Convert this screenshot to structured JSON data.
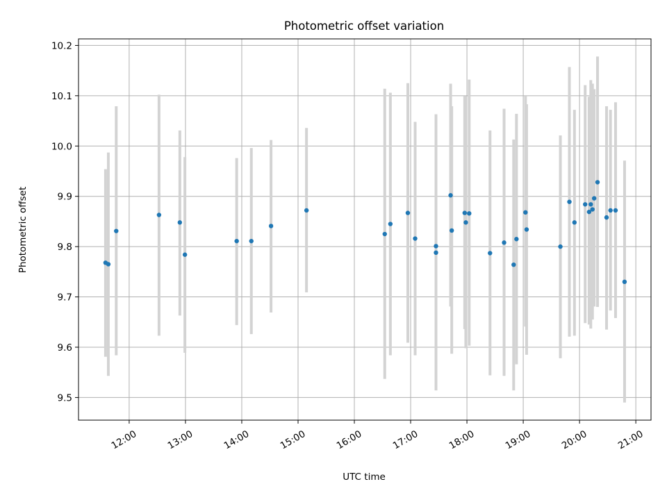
{
  "chart_data": {
    "type": "scatter",
    "title": "Photometric offset variation",
    "xlabel": "UTC time",
    "ylabel": "Photometric offset",
    "grid": true,
    "xlim": [
      11.1,
      21.27
    ],
    "ylim": [
      9.455,
      10.213
    ],
    "x_ticks": [
      {
        "value": 12,
        "label": "12:00"
      },
      {
        "value": 13,
        "label": "13:00"
      },
      {
        "value": 14,
        "label": "14:00"
      },
      {
        "value": 15,
        "label": "15:00"
      },
      {
        "value": 16,
        "label": "16:00"
      },
      {
        "value": 17,
        "label": "17:00"
      },
      {
        "value": 18,
        "label": "18:00"
      },
      {
        "value": 19,
        "label": "19:00"
      },
      {
        "value": 20,
        "label": "20:00"
      },
      {
        "value": 21,
        "label": "21:00"
      }
    ],
    "y_ticks": [
      {
        "value": 9.5,
        "label": "9.5"
      },
      {
        "value": 9.6,
        "label": "9.6"
      },
      {
        "value": 9.7,
        "label": "9.7"
      },
      {
        "value": 9.8,
        "label": "9.8"
      },
      {
        "value": 9.9,
        "label": "9.9"
      },
      {
        "value": 10.0,
        "label": "10.0"
      },
      {
        "value": 10.1,
        "label": "10.1"
      },
      {
        "value": 10.2,
        "label": "10.2"
      }
    ],
    "point_color": "#1f77b4",
    "errorbar_color": "#d3d3d3",
    "points": [
      {
        "x": 11.58,
        "y": 9.768,
        "low": 9.581,
        "high": 9.954
      },
      {
        "x": 11.63,
        "y": 9.765,
        "low": 9.543,
        "high": 9.987
      },
      {
        "x": 11.77,
        "y": 9.831,
        "low": 9.584,
        "high": 10.079
      },
      {
        "x": 12.53,
        "y": 9.863,
        "low": 9.623,
        "high": 10.102
      },
      {
        "x": 12.9,
        "y": 9.848,
        "low": 9.663,
        "high": 10.031
      },
      {
        "x": 12.99,
        "y": 9.784,
        "low": 9.589,
        "high": 9.978
      },
      {
        "x": 13.91,
        "y": 9.811,
        "low": 9.644,
        "high": 9.976
      },
      {
        "x": 14.17,
        "y": 9.811,
        "low": 9.626,
        "high": 9.996
      },
      {
        "x": 14.52,
        "y": 9.841,
        "low": 9.669,
        "high": 10.012
      },
      {
        "x": 15.15,
        "y": 9.872,
        "low": 9.709,
        "high": 10.036
      },
      {
        "x": 16.54,
        "y": 9.825,
        "low": 9.537,
        "high": 10.114
      },
      {
        "x": 16.64,
        "y": 9.845,
        "low": 9.584,
        "high": 10.106
      },
      {
        "x": 16.95,
        "y": 9.867,
        "low": 9.609,
        "high": 10.125
      },
      {
        "x": 17.08,
        "y": 9.816,
        "low": 9.584,
        "high": 10.048
      },
      {
        "x": 17.45,
        "y": 9.801,
        "low": 9.538,
        "high": 10.063
      },
      {
        "x": 17.45,
        "y": 9.788,
        "low": 9.514,
        "high": 10.063
      },
      {
        "x": 17.71,
        "y": 9.902,
        "low": 9.681,
        "high": 10.124
      },
      {
        "x": 17.73,
        "y": 9.832,
        "low": 9.587,
        "high": 10.079
      },
      {
        "x": 17.96,
        "y": 9.867,
        "low": 9.636,
        "high": 10.099
      },
      {
        "x": 17.98,
        "y": 9.848,
        "low": 9.598,
        "high": 10.099
      },
      {
        "x": 18.04,
        "y": 9.866,
        "low": 9.603,
        "high": 10.132
      },
      {
        "x": 18.41,
        "y": 9.787,
        "low": 9.544,
        "high": 10.031
      },
      {
        "x": 18.66,
        "y": 9.808,
        "low": 9.543,
        "high": 10.074
      },
      {
        "x": 18.83,
        "y": 9.764,
        "low": 9.514,
        "high": 10.013
      },
      {
        "x": 18.88,
        "y": 9.815,
        "low": 9.566,
        "high": 10.064
      },
      {
        "x": 19.04,
        "y": 9.868,
        "low": 9.641,
        "high": 10.099
      },
      {
        "x": 19.06,
        "y": 9.834,
        "low": 9.585,
        "high": 10.083
      },
      {
        "x": 19.66,
        "y": 9.8,
        "low": 9.578,
        "high": 10.021
      },
      {
        "x": 19.82,
        "y": 9.889,
        "low": 9.621,
        "high": 10.157
      },
      {
        "x": 19.91,
        "y": 9.848,
        "low": 9.623,
        "high": 10.072
      },
      {
        "x": 20.1,
        "y": 9.884,
        "low": 9.648,
        "high": 10.121
      },
      {
        "x": 20.17,
        "y": 9.869,
        "low": 9.645,
        "high": 10.098
      },
      {
        "x": 20.2,
        "y": 9.884,
        "low": 9.637,
        "high": 10.131
      },
      {
        "x": 20.23,
        "y": 9.874,
        "low": 9.655,
        "high": 10.124
      },
      {
        "x": 20.26,
        "y": 9.896,
        "low": 9.681,
        "high": 10.113
      },
      {
        "x": 20.32,
        "y": 9.928,
        "low": 9.68,
        "high": 10.178
      },
      {
        "x": 20.48,
        "y": 9.858,
        "low": 9.635,
        "high": 10.079
      },
      {
        "x": 20.55,
        "y": 9.872,
        "low": 9.673,
        "high": 10.072
      },
      {
        "x": 20.64,
        "y": 9.872,
        "low": 9.658,
        "high": 10.087
      },
      {
        "x": 20.8,
        "y": 9.73,
        "low": 9.49,
        "high": 9.971
      }
    ]
  }
}
